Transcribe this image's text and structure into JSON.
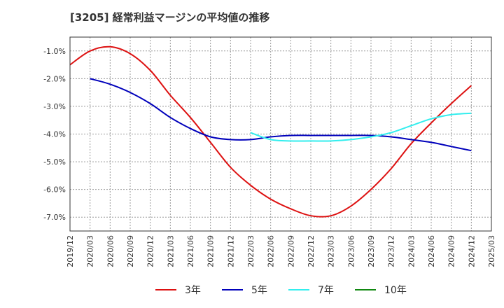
{
  "chart_data": {
    "type": "line",
    "title": "[3205]  経常利益マージンの平均値の推移",
    "xlabel": "",
    "ylabel": "",
    "ylim": [
      -7.5,
      -0.5
    ],
    "y_ticks": [
      "-1.0%",
      "-2.0%",
      "-3.0%",
      "-4.0%",
      "-5.0%",
      "-6.0%",
      "-7.0%"
    ],
    "y_tick_values": [
      -1,
      -2,
      -3,
      -4,
      -5,
      -6,
      -7
    ],
    "x_ticks": [
      "2019/12",
      "2020/03",
      "2020/06",
      "2020/09",
      "2020/12",
      "2021/03",
      "2021/06",
      "2021/09",
      "2021/12",
      "2022/03",
      "2022/06",
      "2022/09",
      "2022/12",
      "2023/03",
      "2023/06",
      "2023/09",
      "2023/12",
      "2024/03",
      "2024/06",
      "2024/09",
      "2024/12",
      "2025/03"
    ],
    "grid": true,
    "legend_position": "bottom",
    "series": [
      {
        "name": "3年",
        "color": "#dd1111",
        "x": [
          "2019/12",
          "2020/03",
          "2020/06",
          "2020/09",
          "2020/12",
          "2021/03",
          "2021/06",
          "2021/09",
          "2021/12",
          "2022/03",
          "2022/06",
          "2022/09",
          "2022/12",
          "2023/03",
          "2023/06",
          "2023/09",
          "2023/12",
          "2024/03",
          "2024/06",
          "2024/09",
          "2024/12"
        ],
        "values": [
          -1.5,
          -1.0,
          -0.85,
          -1.1,
          -1.7,
          -2.6,
          -3.4,
          -4.3,
          -5.2,
          -5.85,
          -6.35,
          -6.7,
          -6.95,
          -6.95,
          -6.6,
          -6.0,
          -5.25,
          -4.35,
          -3.6,
          -2.9,
          -2.25
        ]
      },
      {
        "name": "5年",
        "color": "#0000bb",
        "x": [
          "2020/03",
          "2020/06",
          "2020/09",
          "2020/12",
          "2021/03",
          "2021/06",
          "2021/09",
          "2021/12",
          "2022/03",
          "2022/06",
          "2022/09",
          "2022/12",
          "2023/03",
          "2023/06",
          "2023/09",
          "2023/12",
          "2024/03",
          "2024/06",
          "2024/09",
          "2024/12"
        ],
        "values": [
          -2.0,
          -2.2,
          -2.5,
          -2.9,
          -3.4,
          -3.8,
          -4.1,
          -4.2,
          -4.2,
          -4.1,
          -4.05,
          -4.05,
          -4.05,
          -4.05,
          -4.05,
          -4.1,
          -4.2,
          -4.3,
          -4.45,
          -4.6
        ]
      },
      {
        "name": "7年",
        "color": "#33eeee",
        "x": [
          "2022/03",
          "2022/06",
          "2022/09",
          "2022/12",
          "2023/03",
          "2023/06",
          "2023/09",
          "2023/12",
          "2024/03",
          "2024/06",
          "2024/09",
          "2024/12"
        ],
        "values": [
          -3.95,
          -4.2,
          -4.25,
          -4.25,
          -4.25,
          -4.2,
          -4.1,
          -3.95,
          -3.7,
          -3.45,
          -3.3,
          -3.25
        ]
      },
      {
        "name": "10年",
        "color": "#118811",
        "x": [],
        "values": []
      }
    ]
  }
}
